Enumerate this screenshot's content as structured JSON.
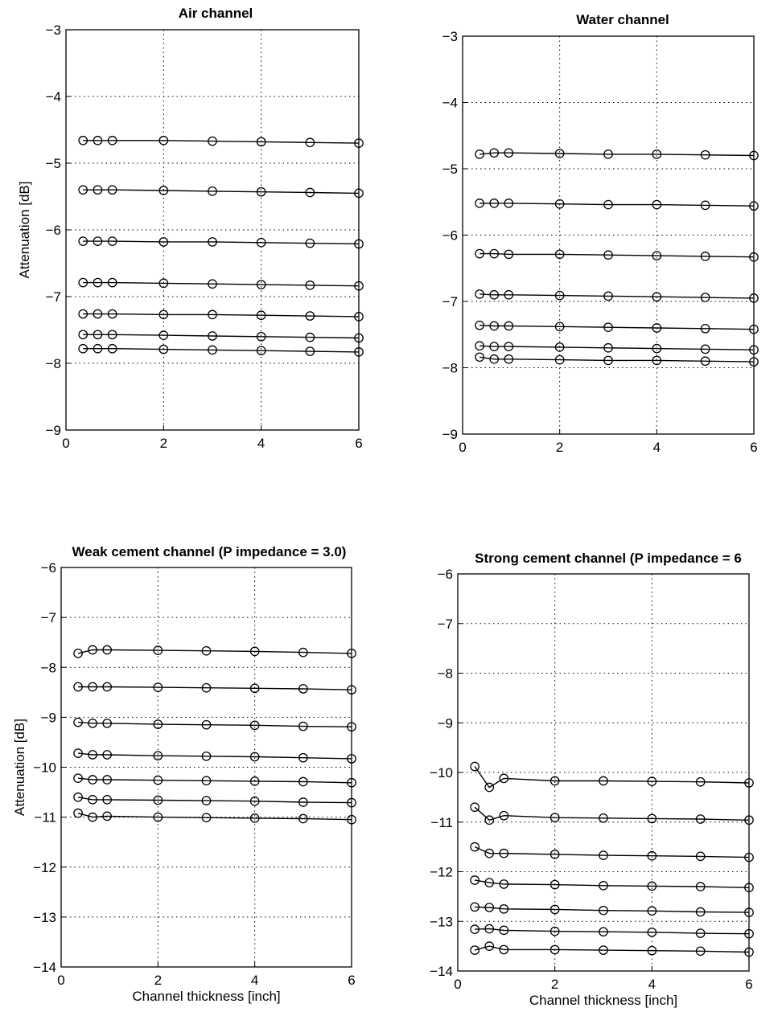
{
  "chart_data": [
    {
      "type": "line",
      "title": "Air channel",
      "xlabel": "",
      "ylabel": "Attenuation [dB]",
      "xlim": [
        0,
        6
      ],
      "ylim": [
        -9,
        -3
      ],
      "xticks": [
        "0",
        "2",
        "4",
        "6"
      ],
      "yticks": [
        "−3",
        "−4",
        "−5",
        "−6",
        "−7",
        "−8",
        "−9"
      ],
      "grid": true,
      "marker": "circle",
      "x": [
        0.35,
        0.65,
        0.95,
        2,
        3,
        4,
        5,
        6
      ],
      "series": [
        {
          "values": [
            -4.66,
            -4.66,
            -4.66,
            -4.66,
            -4.67,
            -4.68,
            -4.69,
            -4.7
          ]
        },
        {
          "values": [
            -5.4,
            -5.4,
            -5.4,
            -5.41,
            -5.42,
            -5.43,
            -5.44,
            -5.45
          ]
        },
        {
          "values": [
            -6.17,
            -6.17,
            -6.17,
            -6.18,
            -6.18,
            -6.19,
            -6.2,
            -6.21
          ]
        },
        {
          "values": [
            -6.79,
            -6.79,
            -6.79,
            -6.8,
            -6.81,
            -6.82,
            -6.83,
            -6.84
          ]
        },
        {
          "values": [
            -7.26,
            -7.26,
            -7.26,
            -7.27,
            -7.27,
            -7.28,
            -7.29,
            -7.3
          ]
        },
        {
          "values": [
            -7.57,
            -7.57,
            -7.57,
            -7.58,
            -7.59,
            -7.6,
            -7.61,
            -7.62
          ]
        },
        {
          "values": [
            -7.78,
            -7.78,
            -7.78,
            -7.79,
            -7.8,
            -7.81,
            -7.82,
            -7.83
          ]
        }
      ]
    },
    {
      "type": "line",
      "title": "Water channel",
      "xlabel": "",
      "ylabel": "",
      "xlim": [
        0,
        6
      ],
      "ylim": [
        -9,
        -3
      ],
      "xticks": [
        "0",
        "2",
        "4",
        "6"
      ],
      "yticks": [
        "−3",
        "−4",
        "−5",
        "−6",
        "−7",
        "−8",
        "−9"
      ],
      "grid": true,
      "marker": "circle",
      "x": [
        0.35,
        0.65,
        0.95,
        2,
        3,
        4,
        5,
        6
      ],
      "series": [
        {
          "values": [
            -4.78,
            -4.76,
            -4.76,
            -4.77,
            -4.78,
            -4.78,
            -4.79,
            -4.8
          ]
        },
        {
          "values": [
            -5.52,
            -5.52,
            -5.52,
            -5.53,
            -5.54,
            -5.54,
            -5.55,
            -5.56
          ]
        },
        {
          "values": [
            -6.28,
            -6.28,
            -6.29,
            -6.29,
            -6.3,
            -6.31,
            -6.32,
            -6.33
          ]
        },
        {
          "values": [
            -6.89,
            -6.9,
            -6.9,
            -6.91,
            -6.92,
            -6.93,
            -6.94,
            -6.95
          ]
        },
        {
          "values": [
            -7.36,
            -7.37,
            -7.37,
            -7.38,
            -7.39,
            -7.4,
            -7.41,
            -7.42
          ]
        },
        {
          "values": [
            -7.67,
            -7.68,
            -7.68,
            -7.69,
            -7.7,
            -7.71,
            -7.72,
            -7.73
          ]
        },
        {
          "values": [
            -7.84,
            -7.87,
            -7.87,
            -7.88,
            -7.89,
            -7.89,
            -7.9,
            -7.91
          ]
        }
      ]
    },
    {
      "type": "line",
      "title": "Weak cement channel (P impedance = 3.0)",
      "xlabel": "Channel thickness [inch]",
      "ylabel": "Attenuation [dB]",
      "xlim": [
        0,
        6
      ],
      "ylim": [
        -14,
        -6
      ],
      "xticks": [
        "0",
        "2",
        "4",
        "6"
      ],
      "yticks": [
        "−6",
        "−7",
        "−8",
        "−9",
        "−10",
        "−11",
        "−12",
        "−13",
        "−14"
      ],
      "grid": true,
      "marker": "circle",
      "x": [
        0.35,
        0.65,
        0.95,
        2,
        3,
        4,
        5,
        6
      ],
      "series": [
        {
          "values": [
            -7.72,
            -7.65,
            -7.65,
            -7.66,
            -7.67,
            -7.68,
            -7.7,
            -7.72
          ]
        },
        {
          "values": [
            -8.39,
            -8.39,
            -8.39,
            -8.4,
            -8.41,
            -8.42,
            -8.43,
            -8.45
          ]
        },
        {
          "values": [
            -9.1,
            -9.12,
            -9.12,
            -9.14,
            -9.15,
            -9.16,
            -9.18,
            -9.19
          ]
        },
        {
          "values": [
            -9.72,
            -9.75,
            -9.75,
            -9.77,
            -9.78,
            -9.79,
            -9.81,
            -9.83
          ]
        },
        {
          "values": [
            -10.22,
            -10.25,
            -10.25,
            -10.26,
            -10.27,
            -10.28,
            -10.29,
            -10.31
          ]
        },
        {
          "values": [
            -10.6,
            -10.65,
            -10.65,
            -10.66,
            -10.67,
            -10.68,
            -10.7,
            -10.71
          ]
        },
        {
          "values": [
            -10.92,
            -11.0,
            -10.98,
            -11.0,
            -11.01,
            -11.02,
            -11.03,
            -11.05
          ]
        }
      ]
    },
    {
      "type": "line",
      "title": "Strong cement channel (P impedance = 6",
      "xlabel": "Channel thickness [inch]",
      "ylabel": "",
      "xlim": [
        0,
        6
      ],
      "ylim": [
        -14,
        -6
      ],
      "xticks": [
        "0",
        "2",
        "4",
        "6"
      ],
      "yticks": [
        "−6",
        "−7",
        "−8",
        "−9",
        "−10",
        "−11",
        "−12",
        "−13",
        "−14"
      ],
      "grid": true,
      "marker": "circle",
      "x": [
        0.35,
        0.65,
        0.95,
        2,
        3,
        4,
        5,
        6
      ],
      "series": [
        {
          "values": [
            -9.88,
            -10.3,
            -10.12,
            -10.17,
            -10.17,
            -10.18,
            -10.19,
            -10.21
          ]
        },
        {
          "values": [
            -10.7,
            -10.96,
            -10.87,
            -10.91,
            -10.92,
            -10.93,
            -10.94,
            -10.96
          ]
        },
        {
          "values": [
            -11.5,
            -11.63,
            -11.63,
            -11.65,
            -11.67,
            -11.68,
            -11.69,
            -11.71
          ]
        },
        {
          "values": [
            -12.17,
            -12.22,
            -12.25,
            -12.26,
            -12.28,
            -12.29,
            -12.3,
            -12.32
          ]
        },
        {
          "values": [
            -12.71,
            -12.72,
            -12.75,
            -12.76,
            -12.78,
            -12.79,
            -12.81,
            -12.82
          ]
        },
        {
          "values": [
            -13.16,
            -13.15,
            -13.18,
            -13.2,
            -13.21,
            -13.22,
            -13.24,
            -13.25
          ]
        },
        {
          "values": [
            -13.58,
            -13.5,
            -13.57,
            -13.57,
            -13.58,
            -13.59,
            -13.6,
            -13.62
          ]
        }
      ]
    }
  ]
}
